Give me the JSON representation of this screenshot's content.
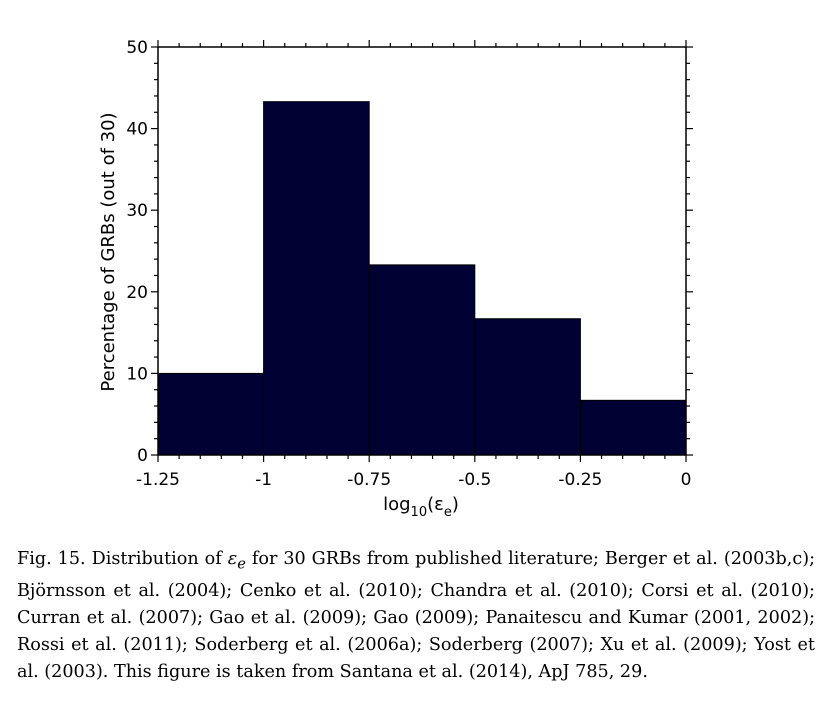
{
  "chart_data": {
    "type": "bar",
    "bins": [
      {
        "x0": -1.25,
        "x1": -1.0,
        "value": 10.0
      },
      {
        "x0": -1.0,
        "x1": -0.75,
        "value": 43.3
      },
      {
        "x0": -0.75,
        "x1": -0.5,
        "value": 23.3
      },
      {
        "x0": -0.5,
        "x1": -0.25,
        "value": 16.7
      },
      {
        "x0": -0.25,
        "x1": 0.0,
        "value": 6.7
      }
    ],
    "xlim": [
      -1.25,
      0
    ],
    "ylim": [
      0,
      50
    ],
    "x_ticks": [
      -1.25,
      -1.0,
      -0.75,
      -0.5,
      -0.25,
      0
    ],
    "x_tick_labels": [
      "-1.25",
      "-1",
      "-0.75",
      "-0.5",
      "-0.25",
      "0"
    ],
    "y_ticks": [
      0,
      10,
      20,
      30,
      40,
      50
    ],
    "y_tick_labels": [
      "0",
      "10",
      "20",
      "30",
      "40",
      "50"
    ],
    "xlabel_base": "log",
    "xlabel_sub": "10",
    "xlabel_arg_open": "(ε",
    "xlabel_arg_sub": "e",
    "xlabel_arg_close": ")",
    "ylabel": "Percentage of GRBs (out of 30)",
    "bar_color": "#000033",
    "grid": false,
    "title": ""
  },
  "caption": {
    "prefix": "Fig. 15. Distribution of ",
    "symbol": "ε",
    "symbol_sub": "e",
    "text": " for 30 GRBs from published literature; Berger et al. (2003b,c); Björnsson et al. (2004); Cenko et al. (2010); Chandra et al. (2010); Corsi et al. (2010); Curran et al. (2007); Gao et al. (2009); Gao (2009); Panaitescu and Kumar (2001, 2002); Rossi et al. (2011); Soderberg et al. (2006a); Soderberg (2007); Xu et al. (2009); Yost et al. (2003). This figure is taken from Santana et al. (2014), ApJ 785, 29."
  }
}
